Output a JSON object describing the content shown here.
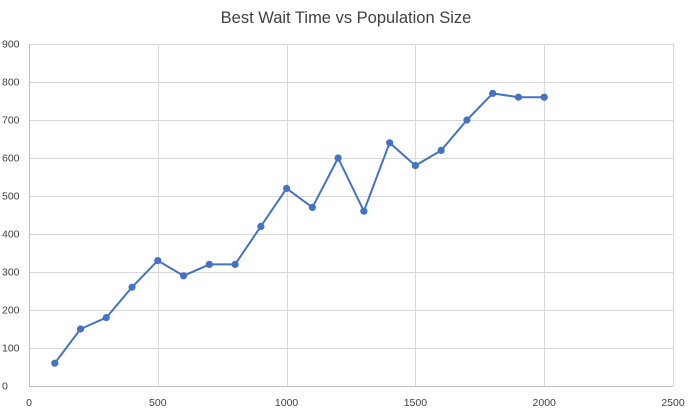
{
  "chart_data": {
    "type": "scatter",
    "title": "Best Wait Time vs Population Size",
    "xlabel": "",
    "ylabel": "",
    "xlim": [
      0,
      2500
    ],
    "ylim": [
      0,
      900
    ],
    "x_ticks": [
      "0",
      "500",
      "1000",
      "1500",
      "2000",
      "2500"
    ],
    "y_ticks": [
      "0",
      "100",
      "200",
      "300",
      "400",
      "500",
      "600",
      "700",
      "800",
      "900"
    ],
    "grid": "both",
    "legend": "none",
    "series": [
      {
        "color": "#4472c4",
        "marker": "circle",
        "line": true,
        "x": [
          100,
          200,
          300,
          400,
          500,
          600,
          700,
          800,
          900,
          1000,
          1100,
          1200,
          1300,
          1400,
          1500,
          1600,
          1700,
          1800,
          1900,
          2000
        ],
        "y": [
          60,
          150,
          180,
          260,
          330,
          290,
          320,
          320,
          420,
          520,
          470,
          600,
          460,
          640,
          580,
          620,
          700,
          770,
          760,
          760
        ]
      }
    ]
  }
}
